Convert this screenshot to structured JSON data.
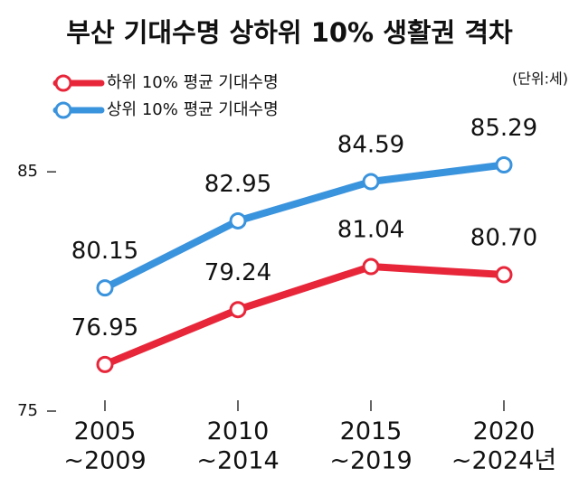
{
  "chart_data": {
    "type": "line",
    "title": "부산 기대수명 상하위 10% 생활권 격차",
    "unit_note": "(단위:세)",
    "categories": [
      "2005\n~2009",
      "2010\n~2014",
      "2015\n~2019",
      "2020\n~2024년"
    ],
    "series": [
      {
        "name": "하위 10% 평균 기대수명",
        "color": "#e8263a",
        "values": [
          76.95,
          79.24,
          81.04,
          80.7
        ],
        "value_labels": [
          "76.95",
          "79.24",
          "81.04",
          "80.70"
        ]
      },
      {
        "name": "상위 10% 평균 기대수명",
        "color": "#3a93dd",
        "values": [
          80.15,
          82.95,
          84.59,
          85.29
        ],
        "value_labels": [
          "80.15",
          "82.95",
          "84.59",
          "85.29"
        ]
      }
    ],
    "ylim": [
      75,
      89.5
    ],
    "yticks": [
      75,
      85
    ]
  }
}
